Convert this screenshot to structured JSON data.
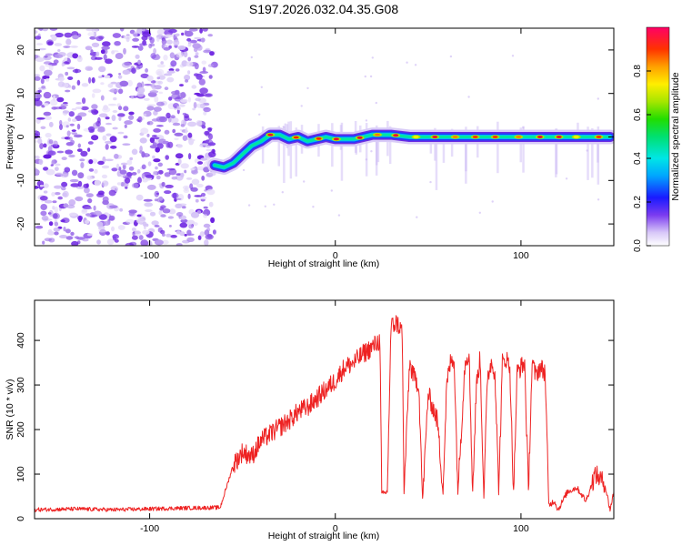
{
  "title": "S197.2026.032.04.35.G08",
  "chart_data": [
    {
      "type": "heatmap",
      "title": "S197.2026.032.04.35.G08",
      "xlabel": "Height of straight line (km)",
      "ylabel": "Frequency (Hz)",
      "xlim": [
        -162,
        150
      ],
      "ylim": [
        -25,
        25
      ],
      "xticks": [
        -100,
        0,
        100
      ],
      "yticks": [
        -20,
        -10,
        0,
        10,
        20
      ],
      "noise_region_x": [
        -162,
        -65
      ],
      "signal_track": {
        "x": [
          -65,
          -60,
          -55,
          -50,
          -45,
          -40,
          -35,
          -30,
          -25,
          -20,
          -15,
          -10,
          -5,
          0,
          5,
          10,
          15,
          20,
          25,
          30,
          40,
          50,
          60,
          70,
          80,
          90,
          100,
          110,
          120,
          130,
          140,
          148
        ],
        "y": [
          -6.5,
          -7,
          -6,
          -4,
          -2,
          -1,
          0.5,
          0.5,
          -0.5,
          0,
          -1,
          -0.5,
          0,
          -0.5,
          -0.5,
          -0.5,
          0,
          0.5,
          0.5,
          0.5,
          0,
          0,
          0,
          0,
          0,
          0,
          0,
          0,
          0,
          0,
          0,
          0
        ]
      },
      "colorbar": {
        "label": "Normalized spectral amplitude",
        "range": [
          0,
          1
        ],
        "ticks": [
          0.0,
          0.2,
          0.4,
          0.6,
          0.8
        ],
        "tick_labels": [
          "0.0",
          "0.2",
          "0.4",
          "0.6",
          "0.8"
        ]
      }
    },
    {
      "type": "line",
      "xlabel": "Height of straight line (km)",
      "ylabel": "SNR (10 * v/v)",
      "xlim": [
        -162,
        150
      ],
      "ylim": [
        0,
        490
      ],
      "xticks": [
        -100,
        0,
        100
      ],
      "yticks": [
        0,
        100,
        200,
        300,
        400
      ],
      "series": [
        {
          "name": "SNR",
          "color": "#ee2222",
          "x": [
            -162,
            -140,
            -120,
            -100,
            -80,
            -62,
            -55,
            -50,
            -45,
            -40,
            -35,
            -30,
            -25,
            -20,
            -15,
            -10,
            -5,
            0,
            5,
            10,
            15,
            20,
            24,
            25,
            28,
            30,
            33,
            36,
            37,
            40,
            42,
            45,
            47,
            50,
            55,
            58,
            60,
            62,
            64,
            66,
            70,
            72,
            74,
            76,
            78,
            80,
            82,
            84,
            86,
            88,
            90,
            92,
            94,
            96,
            98,
            100,
            102,
            104,
            106,
            108,
            110,
            113,
            115,
            118,
            120,
            125,
            130,
            135,
            140,
            145,
            148,
            150
          ],
          "y": [
            20,
            22,
            20,
            22,
            24,
            25,
            120,
            150,
            140,
            175,
            190,
            205,
            220,
            240,
            250,
            270,
            290,
            310,
            340,
            350,
            370,
            385,
            400,
            55,
            60,
            430,
            440,
            420,
            55,
            350,
            320,
            300,
            40,
            280,
            220,
            60,
            300,
            350,
            360,
            60,
            360,
            370,
            60,
            300,
            360,
            50,
            320,
            350,
            330,
            60,
            350,
            360,
            340,
            60,
            330,
            340,
            350,
            60,
            350,
            320,
            340,
            330,
            30,
            40,
            20,
            60,
            70,
            40,
            100,
            80,
            20,
            60
          ]
        }
      ]
    }
  ]
}
